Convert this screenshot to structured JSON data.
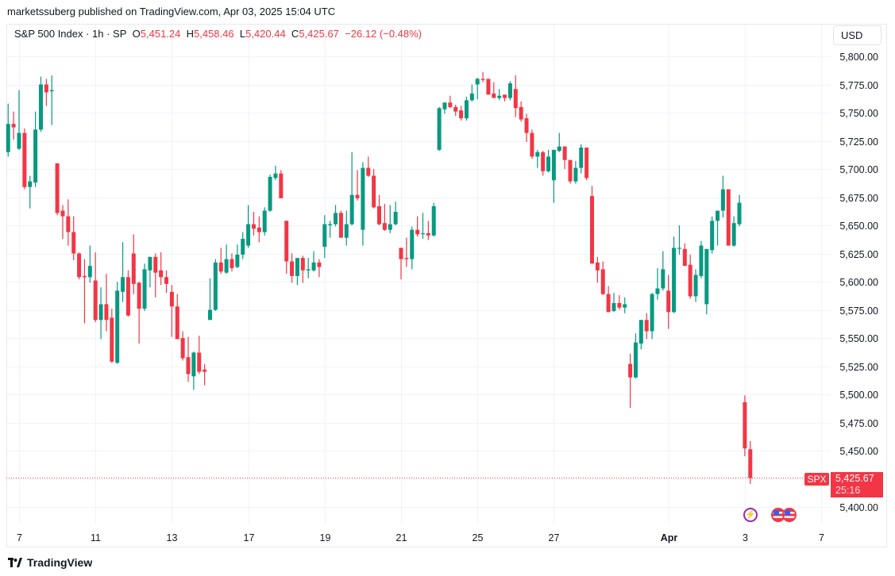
{
  "publisher_line": "marketssuberg published on TradingView.com, Apr 03, 2025 15:04 UTC",
  "legend": {
    "symbol": "S&P 500 Index · 1h · SP",
    "o_label": "O",
    "o_value": "5,451.24",
    "h_label": "H",
    "h_value": "5,458.46",
    "l_label": "L",
    "l_value": "5,420.44",
    "c_label": "C",
    "c_value": "5,425.67",
    "change": "−26.12 (−0.48%)"
  },
  "currency_button": "USD",
  "last_price": {
    "ticker": "SPX",
    "price": "5,425.67",
    "countdown": "25:16",
    "value": 5425.67
  },
  "events": [
    {
      "icon": "lightning-icon"
    },
    {
      "icon": "us-flag-icon"
    },
    {
      "icon": "us-flag-icon"
    }
  ],
  "branding": "TradingView",
  "colors": {
    "up": "#089981",
    "down": "#f23645",
    "grid": "#f0f3fa",
    "text": "#131722"
  },
  "chart_data": {
    "type": "candlestick",
    "title": "S&P 500 Index · 1h",
    "ylim": [
      5380,
      5815
    ],
    "y_ticks": [
      5400,
      5425,
      5450,
      5475,
      5500,
      5525,
      5550,
      5575,
      5600,
      5625,
      5650,
      5675,
      5700,
      5725,
      5750,
      5775,
      5800
    ],
    "y_tick_labels": [
      "5,400.00",
      "5,425.00",
      "5,450.00",
      "5,475.00",
      "5,500.00",
      "5,525.00",
      "5,550.00",
      "5,575.00",
      "5,600.00",
      "5,625.00",
      "5,650.00",
      "5,675.00",
      "5,700.00",
      "5,725.00",
      "5,750.00",
      "5,775.00",
      "5,800.00"
    ],
    "x_ticks": [
      {
        "label": "7",
        "day": 0
      },
      {
        "label": "11",
        "day": 2
      },
      {
        "label": "13",
        "day": 4
      },
      {
        "label": "17",
        "day": 6
      },
      {
        "label": "19",
        "day": 8
      },
      {
        "label": "21",
        "day": 10
      },
      {
        "label": "25",
        "day": 12
      },
      {
        "label": "27",
        "day": 14
      },
      {
        "label": "Apr",
        "day": 17,
        "bold": true
      },
      {
        "label": "3",
        "day": 19
      },
      {
        "label": "7",
        "day": 21
      }
    ],
    "bars_per_day": 7,
    "first_bar_offset": -2,
    "ohlc": [
      [
        5715,
        5758,
        5711,
        5740
      ],
      [
        5740,
        5751,
        5726,
        5737
      ],
      [
        5718,
        5770,
        5717,
        5732
      ],
      [
        5732,
        5736,
        5682,
        5684
      ],
      [
        5684,
        5694,
        5665,
        5689
      ],
      [
        5688,
        5751,
        5684,
        5735
      ],
      [
        5735,
        5782,
        5733,
        5775
      ],
      [
        5775,
        5780,
        5756,
        5768
      ],
      [
        5769,
        5783,
        5739,
        5770
      ],
      [
        5705,
        5705,
        5659,
        5661
      ],
      [
        5663,
        5668,
        5638,
        5658
      ],
      [
        5658,
        5673,
        5632,
        5644
      ],
      [
        5644,
        5658,
        5619,
        5625
      ],
      [
        5625,
        5626,
        5602,
        5604
      ],
      [
        5605,
        5620,
        5563,
        5604
      ],
      [
        5604,
        5632,
        5599,
        5614
      ],
      [
        5601,
        5626,
        5564,
        5566
      ],
      [
        5566,
        5595,
        5549,
        5580
      ],
      [
        5580,
        5607,
        5556,
        5566
      ],
      [
        5568,
        5576,
        5528,
        5529
      ],
      [
        5528,
        5600,
        5527,
        5592
      ],
      [
        5591,
        5635,
        5582,
        5604
      ],
      [
        5604,
        5610,
        5569,
        5570
      ],
      [
        5625,
        5642,
        5589,
        5598
      ],
      [
        5599,
        5600,
        5545,
        5576
      ],
      [
        5576,
        5616,
        5574,
        5611
      ],
      [
        5610,
        5622,
        5595,
        5622
      ],
      [
        5622,
        5625,
        5586,
        5608
      ],
      [
        5610,
        5626,
        5597,
        5604
      ],
      [
        5604,
        5610,
        5590,
        5598
      ],
      [
        5591,
        5597,
        5551,
        5578
      ],
      [
        5578,
        5589,
        5549,
        5549
      ],
      [
        5550,
        5556,
        5530,
        5532
      ],
      [
        5533,
        5551,
        5511,
        5518
      ],
      [
        5516,
        5538,
        5504,
        5537
      ],
      [
        5537,
        5552,
        5518,
        5520
      ],
      [
        5522,
        5527,
        5508,
        5520
      ],
      [
        5566,
        5603,
        5566,
        5575
      ],
      [
        5575,
        5620,
        5574,
        5617
      ],
      [
        5617,
        5630,
        5607,
        5609
      ],
      [
        5608,
        5633,
        5607,
        5620
      ],
      [
        5620,
        5625,
        5609,
        5612
      ],
      [
        5613,
        5633,
        5612,
        5624
      ],
      [
        5624,
        5644,
        5620,
        5638
      ],
      [
        5632,
        5668,
        5630,
        5651
      ],
      [
        5651,
        5662,
        5641,
        5647
      ],
      [
        5648,
        5658,
        5635,
        5644
      ],
      [
        5644,
        5666,
        5641,
        5663
      ],
      [
        5663,
        5695,
        5662,
        5693
      ],
      [
        5692,
        5703,
        5690,
        5696
      ],
      [
        5696,
        5699,
        5674,
        5674
      ],
      [
        5654,
        5654,
        5607,
        5618
      ],
      [
        5618,
        5625,
        5599,
        5605
      ],
      [
        5605,
        5621,
        5597,
        5621
      ],
      [
        5621,
        5623,
        5599,
        5610
      ],
      [
        5610,
        5621,
        5603,
        5611
      ],
      [
        5610,
        5627,
        5609,
        5617
      ],
      [
        5617,
        5620,
        5604,
        5613
      ],
      [
        5631,
        5659,
        5621,
        5651
      ],
      [
        5650,
        5654,
        5639,
        5651
      ],
      [
        5651,
        5668,
        5649,
        5661
      ],
      [
        5661,
        5663,
        5639,
        5639
      ],
      [
        5639,
        5663,
        5632,
        5651
      ],
      [
        5651,
        5715,
        5650,
        5677
      ],
      [
        5677,
        5699,
        5672,
        5674
      ],
      [
        5646,
        5706,
        5632,
        5701
      ],
      [
        5701,
        5711,
        5693,
        5694
      ],
      [
        5694,
        5700,
        5665,
        5666
      ],
      [
        5667,
        5677,
        5650,
        5651
      ],
      [
        5652,
        5669,
        5645,
        5646
      ],
      [
        5646,
        5668,
        5643,
        5651
      ],
      [
        5651,
        5671,
        5650,
        5662
      ],
      [
        5630,
        5630,
        5602,
        5620
      ],
      [
        5621,
        5639,
        5613,
        5620
      ],
      [
        5620,
        5649,
        5611,
        5646
      ],
      [
        5646,
        5658,
        5640,
        5642
      ],
      [
        5643,
        5661,
        5638,
        5643
      ],
      [
        5643,
        5654,
        5637,
        5641
      ],
      [
        5641,
        5670,
        5640,
        5667
      ],
      [
        5717,
        5755,
        5716,
        5754
      ],
      [
        5753,
        5759,
        5749,
        5759
      ],
      [
        5759,
        5765,
        5754,
        5755
      ],
      [
        5755,
        5757,
        5747,
        5751
      ],
      [
        5752,
        5756,
        5743,
        5745
      ],
      [
        5745,
        5764,
        5743,
        5761
      ],
      [
        5761,
        5775,
        5760,
        5767
      ],
      [
        5775,
        5781,
        5762,
        5780
      ],
      [
        5780,
        5786,
        5777,
        5779
      ],
      [
        5780,
        5780,
        5766,
        5766
      ],
      [
        5767,
        5777,
        5763,
        5763
      ],
      [
        5763,
        5771,
        5761,
        5765
      ],
      [
        5766,
        5766,
        5760,
        5763
      ],
      [
        5763,
        5778,
        5761,
        5776
      ],
      [
        5771,
        5783,
        5746,
        5754
      ],
      [
        5755,
        5760,
        5742,
        5744
      ],
      [
        5745,
        5749,
        5724,
        5732
      ],
      [
        5732,
        5735,
        5709,
        5711
      ],
      [
        5711,
        5717,
        5701,
        5715
      ],
      [
        5715,
        5716,
        5694,
        5698
      ],
      [
        5698,
        5717,
        5697,
        5711
      ],
      [
        5690,
        5717,
        5670,
        5717
      ],
      [
        5716,
        5732,
        5715,
        5720
      ],
      [
        5720,
        5720,
        5700,
        5708
      ],
      [
        5708,
        5708,
        5687,
        5689
      ],
      [
        5689,
        5707,
        5687,
        5701
      ],
      [
        5701,
        5722,
        5696,
        5719
      ],
      [
        5719,
        5719,
        5690,
        5692
      ],
      [
        5676,
        5685,
        5616,
        5616
      ],
      [
        5617,
        5622,
        5599,
        5610
      ],
      [
        5611,
        5618,
        5588,
        5589
      ],
      [
        5589,
        5596,
        5573,
        5573
      ],
      [
        5574,
        5590,
        5573,
        5581
      ],
      [
        5581,
        5588,
        5575,
        5577
      ],
      [
        5577,
        5586,
        5572,
        5580
      ],
      [
        5527,
        5536,
        5488,
        5515
      ],
      [
        5515,
        5554,
        5514,
        5546
      ],
      [
        5545,
        5566,
        5540,
        5566
      ],
      [
        5566,
        5572,
        5549,
        5556
      ],
      [
        5556,
        5590,
        5549,
        5589
      ],
      [
        5589,
        5612,
        5584,
        5594
      ],
      [
        5594,
        5627,
        5592,
        5611
      ],
      [
        5592,
        5606,
        5558,
        5573
      ],
      [
        5573,
        5640,
        5572,
        5630
      ],
      [
        5630,
        5650,
        5624,
        5630
      ],
      [
        5629,
        5634,
        5614,
        5614
      ],
      [
        5615,
        5624,
        5585,
        5587
      ],
      [
        5587,
        5611,
        5582,
        5606
      ],
      [
        5605,
        5636,
        5603,
        5632
      ],
      [
        5580,
        5629,
        5571,
        5629
      ],
      [
        5628,
        5658,
        5625,
        5654
      ],
      [
        5654,
        5663,
        5632,
        5663
      ],
      [
        5663,
        5694,
        5657,
        5682
      ],
      [
        5682,
        5682,
        5632,
        5632
      ],
      [
        5632,
        5658,
        5631,
        5652
      ],
      [
        5651,
        5677,
        5649,
        5670
      ],
      [
        5493,
        5499,
        5445,
        5452
      ],
      [
        5451.24,
        5458.46,
        5420.44,
        5425.67
      ]
    ]
  }
}
